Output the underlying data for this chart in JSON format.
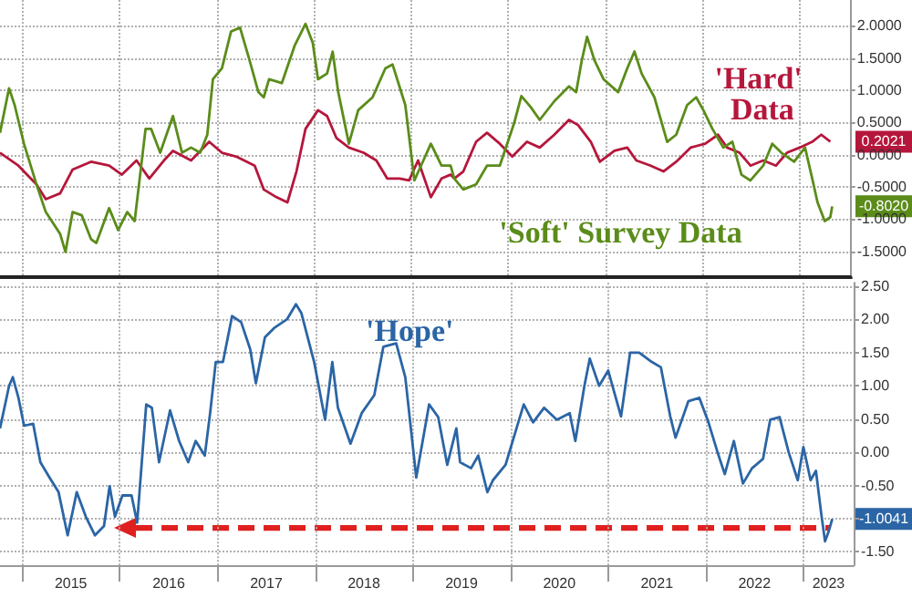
{
  "chart_data": [
    {
      "type": "line",
      "marker": "none",
      "line_style": "solid",
      "grid": true,
      "tick_labels": "y",
      "xlim": [
        "2014-10-10",
        "2023-07-08"
      ],
      "xticks": [
        {
          "value": "2015-01-01",
          "label": null
        },
        {
          "value": "2016-01-01",
          "label": null
        },
        {
          "value": "2017-01-01",
          "label": null
        },
        {
          "value": "2018-01-01",
          "label": null
        },
        {
          "value": "2019-01-01",
          "label": null
        },
        {
          "value": "2020-01-01",
          "label": null
        },
        {
          "value": "2021-01-01",
          "label": null
        },
        {
          "value": "2022-01-01",
          "label": null
        },
        {
          "value": "2023-01-01",
          "label": null
        }
      ],
      "ylim": [
        -1.9,
        2.4
      ],
      "yticks": [
        {
          "value": -1.5,
          "label": "-1.5000"
        },
        {
          "value": -1,
          "label": "-1.0000"
        },
        {
          "value": -0.5,
          "label": "-0.5000"
        },
        {
          "value": 0,
          "label": "0.0000"
        },
        {
          "value": 0.5,
          "label": "0.5000"
        },
        {
          "value": 1,
          "label": "1.0000"
        },
        {
          "value": 1.5,
          "label": "1.5000"
        },
        {
          "value": 2,
          "label": "2.0000"
        }
      ],
      "annotations": [
        {
          "text": "0.2021",
          "x": "2023-04-26",
          "y": 0.2021
        },
        {
          "text": "-0.8020",
          "x": "2023-05-03",
          "y": -0.802
        }
      ],
      "series": [
        {
          "name": "'Hard' Data",
          "color": "#b5173c",
          "x": [
            "2014-10-10",
            "2014-12-18",
            "2015-02-24",
            "2015-03-31",
            "2015-05-24",
            "2015-07-10",
            "2015-09-17",
            "2015-11-24",
            "2016-01-11",
            "2016-03-06",
            "2016-04-23",
            "2016-06-17",
            "2016-07-21",
            "2016-09-27",
            "2016-12-04",
            "2017-01-21",
            "2017-03-16",
            "2017-05-24",
            "2017-06-27",
            "2017-08-14",
            "2017-09-24",
            "2017-10-28",
            "2017-12-01",
            "2018-01-17",
            "2018-02-20",
            "2018-03-27",
            "2018-05-13",
            "2018-07-07",
            "2018-08-24",
            "2018-10-04",
            "2018-11-20",
            "2018-12-25",
            "2019-01-28",
            "2019-03-17",
            "2019-04-26",
            "2019-05-30",
            "2019-06-13",
            "2019-07-17",
            "2019-09-03",
            "2019-10-14",
            "2019-12-01",
            "2020-01-17",
            "2020-03-12",
            "2020-04-29",
            "2020-06-23",
            "2020-08-17",
            "2020-09-20",
            "2020-11-07",
            "2020-12-11",
            "2021-02-04",
            "2021-03-24",
            "2021-04-27",
            "2021-06-20",
            "2021-08-07",
            "2021-09-24",
            "2021-11-17",
            "2022-01-11",
            "2022-02-28",
            "2022-04-03",
            "2022-05-20",
            "2022-06-30",
            "2022-08-17",
            "2022-10-04",
            "2022-11-14",
            "2023-01-01",
            "2023-02-17",
            "2023-03-23",
            "2023-04-26"
          ],
          "values": [
            0.03,
            -0.17,
            -0.46,
            -0.69,
            -0.6,
            -0.23,
            -0.11,
            -0.17,
            -0.31,
            -0.09,
            -0.37,
            -0.09,
            0.06,
            -0.09,
            0.2,
            0.03,
            -0.03,
            -0.17,
            -0.54,
            -0.66,
            -0.74,
            -0.26,
            0.4,
            0.69,
            0.6,
            0.26,
            0.11,
            0.03,
            -0.09,
            -0.37,
            -0.37,
            -0.4,
            -0.09,
            -0.66,
            -0.37,
            -0.31,
            -0.37,
            -0.26,
            0.2,
            0.34,
            0.17,
            -0.03,
            0.2,
            0.11,
            0.31,
            0.54,
            0.46,
            0.2,
            -0.11,
            0.06,
            0.11,
            -0.09,
            -0.17,
            -0.26,
            -0.11,
            0.11,
            0.17,
            0.31,
            0.11,
            0.03,
            -0.17,
            -0.09,
            -0.17,
            0.03,
            0.11,
            0.2,
            0.31,
            0.2021
          ]
        },
        {
          "name": "'Soft' Survey Data",
          "color": "#5b8c1a",
          "x": [
            "2014-10-10",
            "2014-11-13",
            "2014-12-04",
            "2015-01-08",
            "2015-02-24",
            "2015-03-31",
            "2015-05-24",
            "2015-06-13",
            "2015-07-10",
            "2015-08-13",
            "2015-09-17",
            "2015-10-07",
            "2015-11-24",
            "2015-12-28",
            "2016-01-31",
            "2016-02-28",
            "2016-04-09",
            "2016-04-30",
            "2016-06-03",
            "2016-07-21",
            "2016-08-24",
            "2016-09-27",
            "2016-10-31",
            "2016-11-27",
            "2016-12-18",
            "2017-01-21",
            "2017-02-24",
            "2017-03-30",
            "2017-05-03",
            "2017-06-07",
            "2017-06-27",
            "2017-07-17",
            "2017-09-03",
            "2017-10-21",
            "2017-12-01",
            "2017-12-28",
            "2018-01-17",
            "2018-02-20",
            "2018-03-13",
            "2018-04-03",
            "2018-05-13",
            "2018-06-17",
            "2018-08-10",
            "2018-09-27",
            "2018-10-24",
            "2018-12-11",
            "2019-01-14",
            "2019-02-17",
            "2019-03-17",
            "2019-04-26",
            "2019-05-30",
            "2019-06-13",
            "2019-07-17",
            "2019-09-03",
            "2019-10-14",
            "2019-12-01",
            "2020-01-24",
            "2020-02-20",
            "2020-03-26",
            "2020-04-29",
            "2020-06-23",
            "2020-08-17",
            "2020-09-13",
            "2020-10-04",
            "2020-10-24",
            "2020-11-21",
            "2020-12-25",
            "2021-02-18",
            "2021-03-24",
            "2021-04-20",
            "2021-05-17",
            "2021-07-04",
            "2021-08-21",
            "2021-09-24",
            "2021-11-04",
            "2021-12-08",
            "2022-01-04",
            "2022-02-07",
            "2022-03-20",
            "2022-04-23",
            "2022-05-27",
            "2022-06-30",
            "2022-08-17",
            "2022-09-20",
            "2022-10-24",
            "2022-12-11",
            "2023-01-21",
            "2023-02-17",
            "2023-03-09",
            "2023-04-05",
            "2023-04-26",
            "2023-05-03"
          ],
          "values": [
            0.34,
            1.03,
            0.77,
            0.17,
            -0.46,
            -0.89,
            -1.23,
            -1.51,
            -0.89,
            -0.94,
            -1.31,
            -1.37,
            -0.83,
            -1.17,
            -0.89,
            -1.03,
            0.4,
            0.4,
            0.03,
            0.6,
            0.03,
            0.11,
            0.03,
            0.31,
            1.17,
            1.34,
            1.91,
            1.97,
            1.49,
            0.97,
            0.89,
            1.17,
            1.11,
            1.69,
            2.03,
            1.74,
            1.17,
            1.26,
            1.6,
            0.97,
            0.17,
            0.69,
            0.89,
            1.34,
            1.4,
            0.77,
            -0.4,
            -0.09,
            0.17,
            -0.17,
            -0.17,
            -0.37,
            -0.54,
            -0.46,
            -0.17,
            -0.17,
            0.49,
            0.91,
            0.74,
            0.54,
            0.83,
            1.06,
            0.97,
            1.46,
            1.83,
            1.46,
            1.17,
            0.97,
            1.34,
            1.6,
            1.26,
            0.89,
            0.2,
            0.31,
            0.77,
            0.89,
            0.69,
            0.4,
            0.11,
            0.2,
            -0.31,
            -0.4,
            -0.17,
            0.17,
            0.03,
            -0.11,
            0.11,
            -0.37,
            -0.74,
            -1.03,
            -0.97,
            -0.802
          ]
        }
      ]
    },
    {
      "type": "line",
      "marker": "none",
      "line_style": "solid",
      "grid": true,
      "xlim": [
        "2014-10-10",
        "2023-07-08"
      ],
      "xticks": [
        {
          "value": "2015-01-01",
          "label": null
        },
        {
          "value": "2015-07-02",
          "label": "2015"
        },
        {
          "value": "2016-01-01",
          "label": null
        },
        {
          "value": "2016-07-02",
          "label": "2016"
        },
        {
          "value": "2017-01-01",
          "label": null
        },
        {
          "value": "2017-07-02",
          "label": "2017"
        },
        {
          "value": "2018-01-01",
          "label": null
        },
        {
          "value": "2018-07-02",
          "label": "2018"
        },
        {
          "value": "2019-01-01",
          "label": null
        },
        {
          "value": "2019-07-02",
          "label": "2019"
        },
        {
          "value": "2020-01-01",
          "label": null
        },
        {
          "value": "2020-07-02",
          "label": "2020"
        },
        {
          "value": "2021-01-01",
          "label": null
        },
        {
          "value": "2021-07-02",
          "label": "2021"
        },
        {
          "value": "2022-01-01",
          "label": null
        },
        {
          "value": "2022-07-02",
          "label": "2022"
        },
        {
          "value": "2023-01-01",
          "label": null
        },
        {
          "value": "2023-04-05",
          "label": "2023"
        }
      ],
      "ylim": [
        -1.7,
        2.55
      ],
      "yticks": [
        {
          "value": -1.5,
          "label": "-1.50"
        },
        {
          "value": -1,
          "label": null
        },
        {
          "value": -0.5,
          "label": "-0.50"
        },
        {
          "value": 0,
          "label": "0.00"
        },
        {
          "value": 0.5,
          "label": "0.50"
        },
        {
          "value": 1,
          "label": "1.00"
        },
        {
          "value": 1.5,
          "label": "1.50"
        },
        {
          "value": 2,
          "label": "2.00"
        },
        {
          "value": 2.5,
          "label": "2.50"
        }
      ],
      "annotations": [
        {
          "text": "-1.0041",
          "x": "2023-04-19",
          "y": -1.0041
        }
      ],
      "series": [
        {
          "name": "'Hope'",
          "color": "#2b65a5",
          "x": [
            "2014-10-10",
            "2014-11-13",
            "2014-11-27",
            "2014-12-18",
            "2015-01-08",
            "2015-02-11",
            "2015-03-10",
            "2015-04-13",
            "2015-05-17",
            "2015-06-20",
            "2015-07-24",
            "2015-08-27",
            "2015-09-30",
            "2015-11-03",
            "2015-11-24",
            "2015-12-14",
            "2016-01-11",
            "2016-02-14",
            "2016-03-06",
            "2016-04-09",
            "2016-04-30",
            "2016-05-27",
            "2016-07-07",
            "2016-08-10",
            "2016-09-13",
            "2016-10-11",
            "2016-11-14",
            "2016-12-04",
            "2016-12-25",
            "2017-01-21",
            "2017-02-24",
            "2017-03-30",
            "2017-05-03",
            "2017-05-24",
            "2017-06-27",
            "2017-07-31",
            "2017-09-17",
            "2017-10-21",
            "2017-11-10",
            "2017-12-28",
            "2018-02-07",
            "2018-03-06",
            "2018-03-27",
            "2018-05-13",
            "2018-06-24",
            "2018-08-10",
            "2018-09-13",
            "2018-10-31",
            "2018-12-04",
            "2019-01-14",
            "2019-03-03",
            "2019-04-06",
            "2019-05-10",
            "2019-06-13",
            "2019-06-27",
            "2019-08-07",
            "2019-09-03",
            "2019-10-07",
            "2019-10-28",
            "2019-12-14",
            "2020-01-24",
            "2020-02-20",
            "2020-03-26",
            "2020-05-06",
            "2020-06-23",
            "2020-08-10",
            "2020-08-31",
            "2020-10-04",
            "2020-10-24",
            "2020-11-28",
            "2021-01-01",
            "2021-02-18",
            "2021-03-24",
            "2021-04-27",
            "2021-06-13",
            "2021-07-17",
            "2021-08-21",
            "2021-09-10",
            "2021-10-28",
            "2021-12-08",
            "2022-01-11",
            "2022-02-14",
            "2022-03-13",
            "2022-04-16",
            "2022-05-20",
            "2022-06-23",
            "2022-08-03",
            "2022-08-30",
            "2022-10-04",
            "2022-11-07",
            "2022-12-11",
            "2023-01-01",
            "2023-01-28",
            "2023-02-17",
            "2023-03-09",
            "2023-03-23",
            "2023-04-05",
            "2023-04-19"
          ],
          "values": [
            0.36,
            1.0,
            1.13,
            0.82,
            0.4,
            0.43,
            -0.15,
            -0.38,
            -0.6,
            -1.25,
            -0.6,
            -0.97,
            -1.25,
            -1.11,
            -0.51,
            -0.97,
            -0.65,
            -0.65,
            -1.06,
            0.72,
            0.67,
            -0.15,
            0.63,
            0.17,
            -0.15,
            0.17,
            -0.05,
            0.59,
            1.36,
            1.36,
            2.05,
            1.96,
            1.55,
            1.04,
            1.73,
            1.87,
            2.0,
            2.23,
            2.1,
            1.36,
            0.49,
            1.36,
            0.67,
            0.13,
            0.59,
            0.86,
            1.59,
            1.64,
            1.13,
            -0.38,
            0.72,
            0.53,
            -0.19,
            0.36,
            -0.15,
            -0.24,
            -0.05,
            -0.6,
            -0.42,
            -0.19,
            0.36,
            0.72,
            0.45,
            0.67,
            0.49,
            0.59,
            0.17,
            1.0,
            1.41,
            1.0,
            1.23,
            0.54,
            1.5,
            1.5,
            1.36,
            1.28,
            0.54,
            0.22,
            0.77,
            0.82,
            0.45,
            0,
            -0.33,
            0.17,
            -0.47,
            -0.24,
            -0.1,
            0.49,
            0.53,
            0,
            -0.42,
            0.08,
            -0.42,
            -0.28,
            -0.93,
            -1.34,
            -1.2,
            -1.0041
          ]
        }
      ]
    }
  ]
}
